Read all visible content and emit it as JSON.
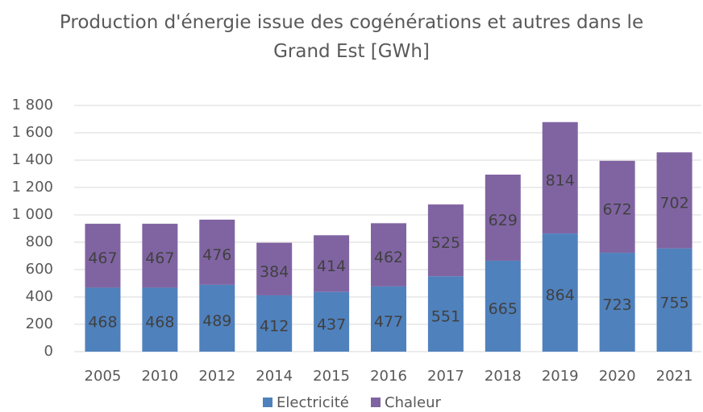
{
  "chart_data": {
    "type": "stacked_bar",
    "title": "Production d'énergie issue des cogénérations et autres dans le Grand Est [GWh]",
    "categories": [
      "2005",
      "2010",
      "2012",
      "2014",
      "2015",
      "2016",
      "2017",
      "2018",
      "2019",
      "2020",
      "2021"
    ],
    "series": [
      {
        "name": "Electricité",
        "color": "#4f81bd",
        "values": [
          468,
          468,
          489,
          412,
          437,
          477,
          551,
          665,
          864,
          723,
          755
        ]
      },
      {
        "name": "Chaleur",
        "color": "#8064a2",
        "values": [
          467,
          467,
          476,
          384,
          414,
          462,
          525,
          629,
          814,
          672,
          702
        ]
      }
    ],
    "ylim": [
      0,
      1800
    ],
    "yticks": [
      0,
      200,
      400,
      600,
      800,
      {
        "value": 1000,
        "label": "1 000"
      },
      {
        "value": 1200,
        "label": "1 200"
      },
      {
        "value": 1400,
        "label": "1 400"
      },
      {
        "value": 1600,
        "label": "1 600"
      },
      {
        "value": 1800,
        "label": "1 800"
      }
    ],
    "grid": true,
    "legend": "bottom"
  }
}
